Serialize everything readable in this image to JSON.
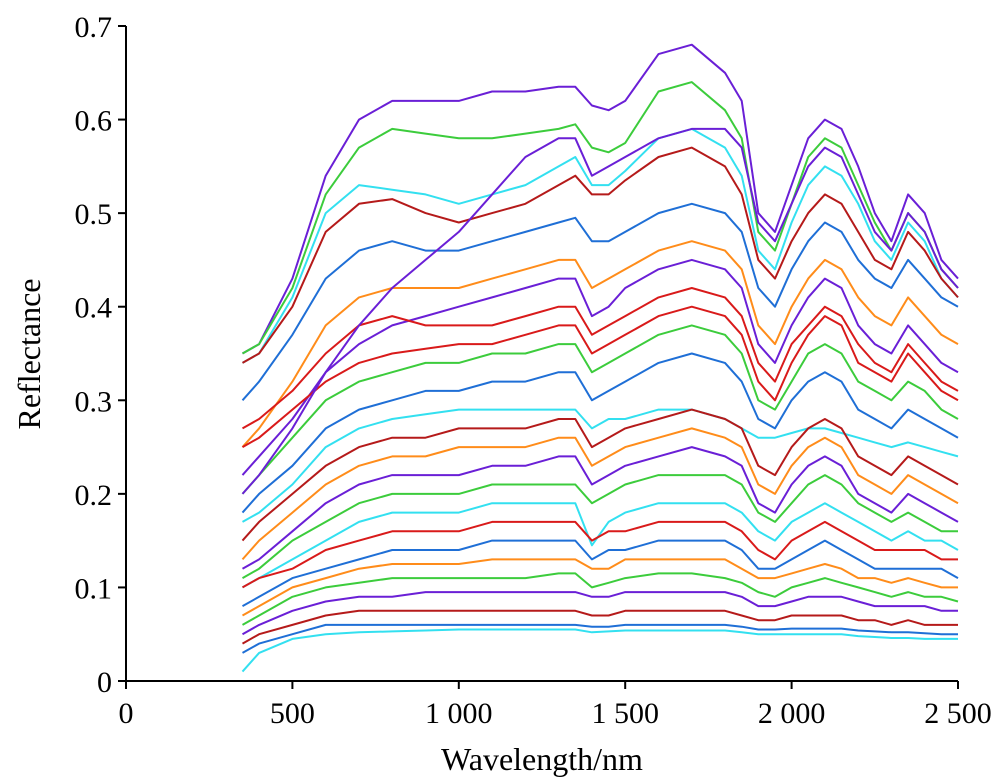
{
  "chart_data": {
    "type": "line",
    "title": "",
    "xlabel": "Wavelength/nm",
    "ylabel": "Reflectance",
    "xlim": [
      0,
      2500
    ],
    "ylim": [
      0,
      0.7
    ],
    "x_ticks": [
      0,
      500,
      1000,
      1500,
      2000,
      2500
    ],
    "x_tick_labels": [
      "0",
      "500",
      "1 000",
      "1 500",
      "2 000",
      "2 500"
    ],
    "y_ticks": [
      0,
      0.1,
      0.2,
      0.3,
      0.4,
      0.5,
      0.6,
      0.7
    ],
    "y_tick_labels": [
      "0",
      "0.1",
      "0.2",
      "0.3",
      "0.4",
      "0.5",
      "0.6",
      "0.7"
    ],
    "grid": false,
    "legend": "none",
    "x": [
      350,
      400,
      500,
      600,
      700,
      800,
      900,
      1000,
      1100,
      1200,
      1300,
      1350,
      1400,
      1450,
      1500,
      1600,
      1700,
      1800,
      1850,
      1900,
      1950,
      2000,
      2050,
      2100,
      2150,
      2200,
      2250,
      2300,
      2350,
      2400,
      2450,
      2500
    ],
    "series": [
      {
        "color": "#6a1fd6",
        "values": [
          0.35,
          0.36,
          0.43,
          0.54,
          0.6,
          0.62,
          0.62,
          0.62,
          0.63,
          0.63,
          0.635,
          0.635,
          0.615,
          0.61,
          0.62,
          0.67,
          0.68,
          0.65,
          0.62,
          0.5,
          0.48,
          0.53,
          0.58,
          0.6,
          0.59,
          0.55,
          0.5,
          0.47,
          0.52,
          0.5,
          0.45,
          0.43
        ]
      },
      {
        "color": "#3ccc3c",
        "values": [
          0.35,
          0.36,
          0.42,
          0.52,
          0.57,
          0.59,
          0.585,
          0.58,
          0.58,
          0.585,
          0.59,
          0.595,
          0.57,
          0.565,
          0.575,
          0.63,
          0.64,
          0.61,
          0.58,
          0.48,
          0.46,
          0.51,
          0.56,
          0.58,
          0.57,
          0.53,
          0.49,
          0.46,
          0.5,
          0.48,
          0.44,
          0.42
        ]
      },
      {
        "color": "#33e0f0",
        "values": [
          0.34,
          0.35,
          0.41,
          0.5,
          0.53,
          0.525,
          0.52,
          0.51,
          0.52,
          0.53,
          0.55,
          0.56,
          0.53,
          0.53,
          0.545,
          0.58,
          0.59,
          0.57,
          0.54,
          0.46,
          0.44,
          0.49,
          0.53,
          0.55,
          0.54,
          0.51,
          0.47,
          0.45,
          0.49,
          0.47,
          0.43,
          0.41
        ]
      },
      {
        "color": "#b51a1a",
        "values": [
          0.34,
          0.35,
          0.4,
          0.48,
          0.51,
          0.515,
          0.5,
          0.49,
          0.5,
          0.51,
          0.53,
          0.54,
          0.52,
          0.52,
          0.535,
          0.56,
          0.57,
          0.55,
          0.52,
          0.45,
          0.43,
          0.47,
          0.5,
          0.52,
          0.51,
          0.48,
          0.45,
          0.44,
          0.48,
          0.46,
          0.43,
          0.41
        ]
      },
      {
        "color": "#1f6fd6",
        "values": [
          0.3,
          0.32,
          0.37,
          0.43,
          0.46,
          0.47,
          0.46,
          0.46,
          0.47,
          0.48,
          0.49,
          0.495,
          0.47,
          0.47,
          0.48,
          0.5,
          0.51,
          0.5,
          0.48,
          0.42,
          0.4,
          0.44,
          0.47,
          0.49,
          0.48,
          0.45,
          0.43,
          0.42,
          0.45,
          0.43,
          0.41,
          0.4
        ]
      },
      {
        "color": "#ff8c1a",
        "values": [
          0.25,
          0.27,
          0.32,
          0.38,
          0.41,
          0.42,
          0.42,
          0.42,
          0.43,
          0.44,
          0.45,
          0.45,
          0.42,
          0.43,
          0.44,
          0.46,
          0.47,
          0.46,
          0.44,
          0.38,
          0.36,
          0.4,
          0.43,
          0.45,
          0.44,
          0.41,
          0.39,
          0.38,
          0.41,
          0.39,
          0.37,
          0.36
        ]
      },
      {
        "color": "#6a1fd6",
        "values": [
          0.22,
          0.24,
          0.28,
          0.33,
          0.36,
          0.38,
          0.39,
          0.4,
          0.41,
          0.42,
          0.43,
          0.43,
          0.39,
          0.4,
          0.42,
          0.44,
          0.45,
          0.44,
          0.42,
          0.36,
          0.34,
          0.38,
          0.41,
          0.43,
          0.42,
          0.38,
          0.36,
          0.35,
          0.38,
          0.36,
          0.34,
          0.33
        ]
      },
      {
        "color": "#d91a1a",
        "values": [
          0.25,
          0.26,
          0.29,
          0.32,
          0.34,
          0.35,
          0.355,
          0.36,
          0.36,
          0.37,
          0.38,
          0.38,
          0.35,
          0.36,
          0.37,
          0.39,
          0.4,
          0.39,
          0.37,
          0.32,
          0.3,
          0.34,
          0.37,
          0.39,
          0.38,
          0.34,
          0.33,
          0.32,
          0.35,
          0.33,
          0.31,
          0.3
        ]
      },
      {
        "color": "#3ccc3c",
        "values": [
          0.2,
          0.22,
          0.26,
          0.3,
          0.32,
          0.33,
          0.34,
          0.34,
          0.35,
          0.35,
          0.36,
          0.36,
          0.33,
          0.34,
          0.35,
          0.37,
          0.38,
          0.37,
          0.35,
          0.3,
          0.29,
          0.32,
          0.35,
          0.36,
          0.35,
          0.32,
          0.31,
          0.3,
          0.32,
          0.31,
          0.29,
          0.28
        ]
      },
      {
        "color": "#1f6fd6",
        "values": [
          0.18,
          0.2,
          0.23,
          0.27,
          0.29,
          0.3,
          0.31,
          0.31,
          0.32,
          0.32,
          0.33,
          0.33,
          0.3,
          0.31,
          0.32,
          0.34,
          0.35,
          0.34,
          0.32,
          0.28,
          0.27,
          0.3,
          0.32,
          0.33,
          0.32,
          0.29,
          0.28,
          0.27,
          0.29,
          0.28,
          0.27,
          0.26
        ]
      },
      {
        "color": "#33e0f0",
        "values": [
          0.17,
          0.18,
          0.21,
          0.25,
          0.27,
          0.28,
          0.285,
          0.29,
          0.29,
          0.29,
          0.29,
          0.29,
          0.27,
          0.28,
          0.28,
          0.29,
          0.29,
          0.28,
          0.27,
          0.26,
          0.26,
          0.265,
          0.27,
          0.27,
          0.265,
          0.26,
          0.255,
          0.25,
          0.255,
          0.25,
          0.245,
          0.24
        ]
      },
      {
        "color": "#b51a1a",
        "values": [
          0.15,
          0.17,
          0.2,
          0.23,
          0.25,
          0.26,
          0.26,
          0.27,
          0.27,
          0.27,
          0.28,
          0.28,
          0.25,
          0.26,
          0.27,
          0.28,
          0.29,
          0.28,
          0.27,
          0.23,
          0.22,
          0.25,
          0.27,
          0.28,
          0.27,
          0.24,
          0.23,
          0.22,
          0.24,
          0.23,
          0.22,
          0.21
        ]
      },
      {
        "color": "#ff8c1a",
        "values": [
          0.13,
          0.15,
          0.18,
          0.21,
          0.23,
          0.24,
          0.24,
          0.25,
          0.25,
          0.25,
          0.26,
          0.26,
          0.23,
          0.24,
          0.25,
          0.26,
          0.27,
          0.26,
          0.25,
          0.21,
          0.2,
          0.23,
          0.25,
          0.26,
          0.25,
          0.22,
          0.21,
          0.2,
          0.22,
          0.21,
          0.2,
          0.19
        ]
      },
      {
        "color": "#6a1fd6",
        "values": [
          0.12,
          0.13,
          0.16,
          0.19,
          0.21,
          0.22,
          0.22,
          0.22,
          0.23,
          0.23,
          0.24,
          0.24,
          0.21,
          0.22,
          0.23,
          0.24,
          0.25,
          0.24,
          0.23,
          0.19,
          0.18,
          0.21,
          0.23,
          0.24,
          0.23,
          0.2,
          0.19,
          0.18,
          0.2,
          0.19,
          0.18,
          0.17
        ]
      },
      {
        "color": "#3ccc3c",
        "values": [
          0.11,
          0.12,
          0.15,
          0.17,
          0.19,
          0.2,
          0.2,
          0.2,
          0.21,
          0.21,
          0.21,
          0.21,
          0.19,
          0.2,
          0.21,
          0.22,
          0.22,
          0.22,
          0.21,
          0.18,
          0.17,
          0.19,
          0.21,
          0.22,
          0.21,
          0.19,
          0.18,
          0.17,
          0.18,
          0.17,
          0.16,
          0.16
        ]
      },
      {
        "color": "#33e0f0",
        "values": [
          0.1,
          0.11,
          0.13,
          0.15,
          0.17,
          0.18,
          0.18,
          0.18,
          0.19,
          0.19,
          0.19,
          0.19,
          0.145,
          0.17,
          0.18,
          0.19,
          0.19,
          0.19,
          0.18,
          0.16,
          0.15,
          0.17,
          0.18,
          0.19,
          0.18,
          0.17,
          0.16,
          0.15,
          0.16,
          0.15,
          0.15,
          0.14
        ]
      },
      {
        "color": "#d91a1a",
        "values": [
          0.1,
          0.11,
          0.12,
          0.14,
          0.15,
          0.16,
          0.16,
          0.16,
          0.17,
          0.17,
          0.17,
          0.17,
          0.15,
          0.16,
          0.16,
          0.17,
          0.17,
          0.17,
          0.16,
          0.14,
          0.13,
          0.15,
          0.16,
          0.17,
          0.16,
          0.15,
          0.14,
          0.14,
          0.14,
          0.14,
          0.13,
          0.13
        ]
      },
      {
        "color": "#1f6fd6",
        "values": [
          0.08,
          0.09,
          0.11,
          0.12,
          0.13,
          0.14,
          0.14,
          0.14,
          0.15,
          0.15,
          0.15,
          0.15,
          0.13,
          0.14,
          0.14,
          0.15,
          0.15,
          0.15,
          0.14,
          0.12,
          0.12,
          0.13,
          0.14,
          0.15,
          0.14,
          0.13,
          0.12,
          0.12,
          0.12,
          0.12,
          0.12,
          0.11
        ]
      },
      {
        "color": "#ff8c1a",
        "values": [
          0.07,
          0.08,
          0.1,
          0.11,
          0.12,
          0.125,
          0.125,
          0.125,
          0.13,
          0.13,
          0.13,
          0.13,
          0.12,
          0.12,
          0.13,
          0.13,
          0.13,
          0.13,
          0.12,
          0.11,
          0.11,
          0.115,
          0.12,
          0.125,
          0.12,
          0.11,
          0.11,
          0.105,
          0.11,
          0.105,
          0.1,
          0.1
        ]
      },
      {
        "color": "#3ccc3c",
        "values": [
          0.06,
          0.07,
          0.09,
          0.1,
          0.105,
          0.11,
          0.11,
          0.11,
          0.11,
          0.11,
          0.115,
          0.115,
          0.1,
          0.105,
          0.11,
          0.115,
          0.115,
          0.11,
          0.105,
          0.095,
          0.09,
          0.1,
          0.105,
          0.11,
          0.105,
          0.1,
          0.095,
          0.09,
          0.095,
          0.09,
          0.09,
          0.085
        ]
      },
      {
        "color": "#6a1fd6",
        "values": [
          0.05,
          0.06,
          0.075,
          0.085,
          0.09,
          0.09,
          0.095,
          0.095,
          0.095,
          0.095,
          0.095,
          0.095,
          0.09,
          0.09,
          0.095,
          0.095,
          0.095,
          0.095,
          0.09,
          0.08,
          0.08,
          0.085,
          0.09,
          0.09,
          0.09,
          0.085,
          0.08,
          0.08,
          0.08,
          0.08,
          0.075,
          0.075
        ]
      },
      {
        "color": "#b51a1a",
        "values": [
          0.04,
          0.05,
          0.06,
          0.07,
          0.075,
          0.075,
          0.075,
          0.075,
          0.075,
          0.075,
          0.075,
          0.075,
          0.07,
          0.07,
          0.075,
          0.075,
          0.075,
          0.075,
          0.07,
          0.065,
          0.065,
          0.07,
          0.07,
          0.07,
          0.07,
          0.065,
          0.065,
          0.06,
          0.065,
          0.06,
          0.06,
          0.06
        ]
      },
      {
        "color": "#1f6fd6",
        "values": [
          0.03,
          0.04,
          0.05,
          0.06,
          0.06,
          0.06,
          0.06,
          0.06,
          0.06,
          0.06,
          0.06,
          0.06,
          0.058,
          0.058,
          0.06,
          0.06,
          0.06,
          0.06,
          0.058,
          0.055,
          0.055,
          0.056,
          0.056,
          0.056,
          0.056,
          0.054,
          0.053,
          0.052,
          0.052,
          0.051,
          0.05,
          0.05
        ]
      },
      {
        "color": "#33e0f0",
        "values": [
          0.01,
          0.03,
          0.045,
          0.05,
          0.052,
          0.053,
          0.054,
          0.055,
          0.055,
          0.055,
          0.055,
          0.055,
          0.052,
          0.053,
          0.054,
          0.054,
          0.054,
          0.054,
          0.052,
          0.05,
          0.05,
          0.05,
          0.05,
          0.05,
          0.05,
          0.048,
          0.047,
          0.046,
          0.046,
          0.045,
          0.045,
          0.045
        ]
      },
      {
        "color": "#d91a1a",
        "values": [
          0.27,
          0.28,
          0.31,
          0.35,
          0.38,
          0.39,
          0.38,
          0.38,
          0.38,
          0.39,
          0.4,
          0.4,
          0.37,
          0.38,
          0.39,
          0.41,
          0.42,
          0.41,
          0.39,
          0.34,
          0.32,
          0.36,
          0.38,
          0.4,
          0.39,
          0.36,
          0.34,
          0.33,
          0.36,
          0.34,
          0.32,
          0.31
        ]
      },
      {
        "color": "#6a1fd6",
        "values": [
          0.2,
          0.22,
          0.27,
          0.33,
          0.38,
          0.42,
          0.45,
          0.48,
          0.52,
          0.56,
          0.58,
          0.58,
          0.54,
          0.55,
          0.56,
          0.58,
          0.59,
          0.59,
          0.57,
          0.49,
          0.47,
          0.51,
          0.55,
          0.57,
          0.56,
          0.52,
          0.48,
          0.46,
          0.5,
          0.48,
          0.44,
          0.42
        ]
      }
    ]
  }
}
